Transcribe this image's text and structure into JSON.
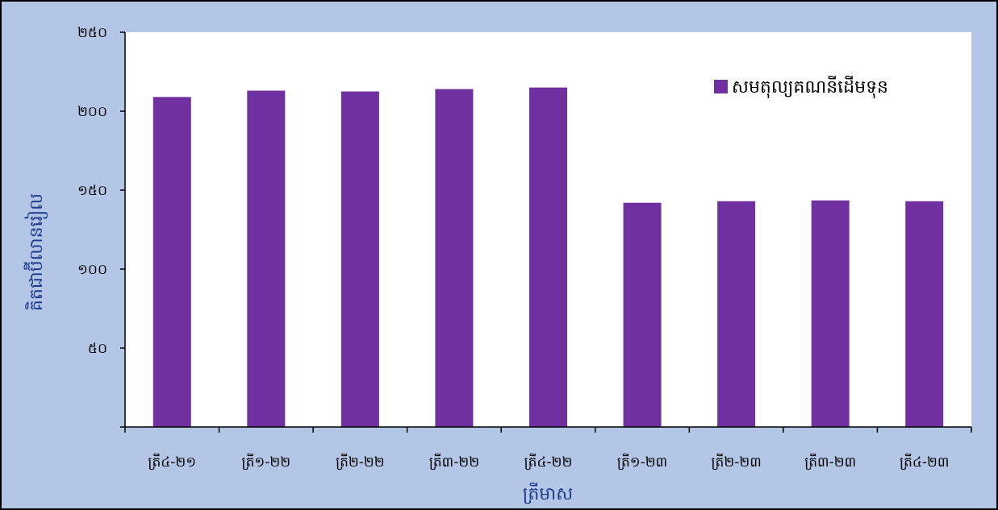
{
  "chart_data": {
    "type": "bar",
    "categories": [
      "ត្រី៤-២១",
      "ត្រី១-២២",
      "ត្រី២-២២",
      "ត្រី៣-២២",
      "ត្រី៤-២២",
      "ត្រី១-២៣",
      "ត្រី២-២៣",
      "ត្រី៣-២៣",
      "ត្រី៤-២៣"
    ],
    "series": [
      {
        "name": "សមតុល្យគណនីដើមទុន",
        "values": [
          209,
          213,
          212.5,
          214,
          215,
          142,
          143,
          143.5,
          143
        ]
      }
    ],
    "xlabel": "ត្រីមាស",
    "ylabel": "គិតជាប៊ីលានរៀល",
    "ylim": [
      0,
      250
    ],
    "yticks": [
      0,
      50,
      100,
      150,
      200,
      250
    ],
    "ytick_labels": [
      "",
      "៥០",
      "១០០",
      "១៥០",
      "២០០",
      "២៥០"
    ],
    "bar_color": "#7030a0",
    "plot_background": "#ffffff",
    "figure_background": "#b3c6e5",
    "grid": false,
    "legend_position": "top-right"
  }
}
